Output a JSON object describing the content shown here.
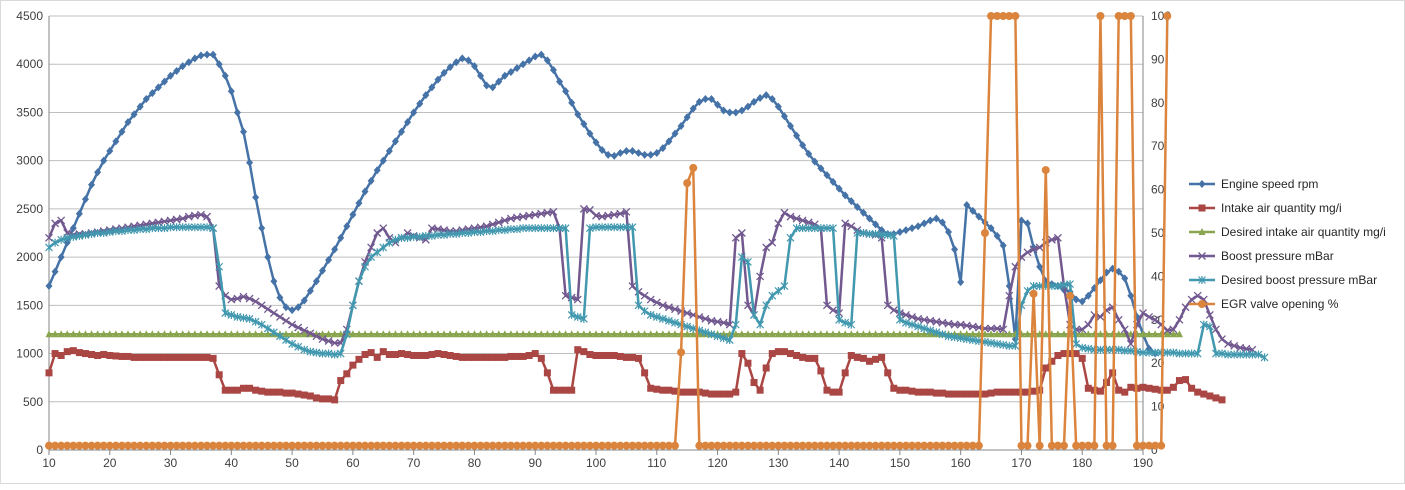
{
  "chart_data": {
    "type": "line",
    "title": "",
    "xlabel": "",
    "ylabel": "",
    "y2label": "",
    "grid": true,
    "legend_position": "right",
    "xlim": [
      10,
      190
    ],
    "x_ticks": [
      10,
      20,
      30,
      40,
      50,
      60,
      70,
      80,
      90,
      100,
      110,
      120,
      130,
      140,
      150,
      160,
      170,
      180,
      190
    ],
    "ylim": [
      0,
      4500
    ],
    "y_ticks": [
      0,
      500,
      1000,
      1500,
      2000,
      2500,
      3000,
      3500,
      4000,
      4500
    ],
    "y2lim": [
      0,
      100
    ],
    "y2_ticks": [
      0,
      10,
      20,
      30,
      40,
      50,
      60,
      70,
      80,
      90,
      100
    ],
    "x_start": 10,
    "x_step": 1,
    "series": [
      {
        "name": "Engine speed rpm",
        "axis": "left",
        "color": "#4572A7",
        "marker": "diamond",
        "values": [
          1700,
          1850,
          2000,
          2150,
          2300,
          2450,
          2600,
          2750,
          2880,
          3000,
          3100,
          3200,
          3300,
          3400,
          3480,
          3560,
          3640,
          3700,
          3760,
          3820,
          3880,
          3930,
          3980,
          4020,
          4060,
          4090,
          4100,
          4100,
          4000,
          3880,
          3720,
          3500,
          3300,
          2980,
          2620,
          2300,
          2000,
          1750,
          1580,
          1480,
          1450,
          1480,
          1550,
          1650,
          1750,
          1860,
          1970,
          2080,
          2200,
          2320,
          2440,
          2560,
          2680,
          2790,
          2900,
          3000,
          3100,
          3200,
          3300,
          3400,
          3500,
          3590,
          3680,
          3760,
          3840,
          3910,
          3970,
          4020,
          4060,
          4040,
          3980,
          3880,
          3780,
          3760,
          3820,
          3880,
          3920,
          3960,
          4000,
          4040,
          4080,
          4100,
          4040,
          3940,
          3820,
          3720,
          3600,
          3480,
          3380,
          3280,
          3190,
          3110,
          3060,
          3050,
          3080,
          3100,
          3100,
          3080,
          3060,
          3060,
          3080,
          3130,
          3200,
          3280,
          3360,
          3450,
          3540,
          3610,
          3640,
          3640,
          3580,
          3520,
          3500,
          3500,
          3520,
          3560,
          3610,
          3650,
          3680,
          3640,
          3560,
          3460,
          3360,
          3260,
          3160,
          3070,
          2990,
          2920,
          2850,
          2780,
          2710,
          2640,
          2580,
          2520,
          2460,
          2400,
          2340,
          2280,
          2240,
          2240,
          2260,
          2280,
          2300,
          2320,
          2350,
          2380,
          2400,
          2360,
          2260,
          2080,
          1740,
          2540,
          2480,
          2420,
          2360,
          2300,
          2220,
          2120,
          1700,
          1150,
          2380,
          2350,
          2100,
          1900,
          1750,
          1720,
          1700,
          1660,
          1640,
          1560,
          1540,
          1600,
          1680,
          1760,
          1840,
          1880,
          1850,
          1780,
          1600,
          1380,
          1200,
          1050,
          1000
        ],
        "_note": ""
      },
      {
        "name": "Intake air quantity mg/i",
        "axis": "left",
        "color": "#AA4643",
        "marker": "square",
        "values": [
          800,
          1000,
          980,
          1020,
          1030,
          1010,
          1000,
          990,
          980,
          990,
          980,
          975,
          970,
          970,
          960,
          960,
          960,
          960,
          960,
          960,
          960,
          960,
          960,
          960,
          960,
          960,
          960,
          950,
          780,
          620,
          620,
          620,
          640,
          640,
          620,
          610,
          600,
          600,
          600,
          590,
          590,
          580,
          570,
          560,
          540,
          530,
          530,
          520,
          720,
          790,
          880,
          940,
          990,
          1010,
          960,
          1020,
          990,
          990,
          1000,
          990,
          980,
          980,
          980,
          990,
          1000,
          990,
          980,
          970,
          960,
          960,
          960,
          960,
          960,
          960,
          960,
          960,
          970,
          970,
          970,
          980,
          1000,
          950,
          800,
          620,
          620,
          620,
          620,
          1040,
          1020,
          990,
          980,
          980,
          980,
          980,
          970,
          960,
          960,
          950,
          800,
          640,
          630,
          620,
          620,
          610,
          600,
          600,
          600,
          600,
          590,
          580,
          580,
          580,
          580,
          600,
          1000,
          900,
          700,
          620,
          850,
          1000,
          1020,
          1020,
          1000,
          980,
          960,
          950,
          950,
          820,
          620,
          600,
          600,
          800,
          980,
          960,
          950,
          920,
          940,
          960,
          800,
          640,
          620,
          620,
          610,
          600,
          600,
          600,
          590,
          590,
          580,
          580,
          580,
          580,
          580,
          580,
          580,
          590,
          600,
          600,
          600,
          600,
          600,
          600,
          610,
          620,
          850,
          920,
          980,
          1000,
          1000,
          1000,
          950,
          640,
          620,
          610,
          700,
          800,
          620,
          600,
          650,
          640,
          650,
          640,
          630,
          620,
          620,
          650,
          720,
          730,
          640,
          600,
          580,
          560,
          540,
          520
        ],
        "_note": ""
      },
      {
        "name": "Desired intake air quantity mg/i",
        "axis": "left",
        "color": "#89A54E",
        "marker": "triangle",
        "values": [
          1200,
          1200,
          1200,
          1200,
          1200,
          1200,
          1200,
          1200,
          1200,
          1200,
          1200,
          1200,
          1200,
          1200,
          1200,
          1200,
          1200,
          1200,
          1200,
          1200,
          1200,
          1200,
          1200,
          1200,
          1200,
          1200,
          1200,
          1200,
          1200,
          1200,
          1200,
          1200,
          1200,
          1200,
          1200,
          1200,
          1200,
          1200,
          1200,
          1200,
          1200,
          1200,
          1200,
          1200,
          1200,
          1200,
          1200,
          1200,
          1200,
          1200,
          1200,
          1200,
          1200,
          1200,
          1200,
          1200,
          1200,
          1200,
          1200,
          1200,
          1200,
          1200,
          1200,
          1200,
          1200,
          1200,
          1200,
          1200,
          1200,
          1200,
          1200,
          1200,
          1200,
          1200,
          1200,
          1200,
          1200,
          1200,
          1200,
          1200,
          1200,
          1200,
          1200,
          1200,
          1200,
          1200,
          1200,
          1200,
          1200,
          1200,
          1200,
          1200,
          1200,
          1200,
          1200,
          1200,
          1200,
          1200,
          1200,
          1200,
          1200,
          1200,
          1200,
          1200,
          1200,
          1200,
          1200,
          1200,
          1200,
          1200,
          1200,
          1200,
          1200,
          1200,
          1200,
          1200,
          1200,
          1200,
          1200,
          1200,
          1200,
          1200,
          1200,
          1200,
          1200,
          1200,
          1200,
          1200,
          1200,
          1200,
          1200,
          1200,
          1200,
          1200,
          1200,
          1200,
          1200,
          1200,
          1200,
          1200,
          1200,
          1200,
          1200,
          1200,
          1200,
          1200,
          1200,
          1200,
          1200,
          1200,
          1200,
          1200,
          1200,
          1200,
          1200,
          1200,
          1200,
          1200,
          1200,
          1200,
          1200,
          1200,
          1200,
          1200,
          1200,
          1200,
          1200,
          1200,
          1200,
          1200,
          1200,
          1200,
          1200,
          1200,
          1200,
          1200,
          1200,
          1200,
          1200,
          1200,
          1200,
          1200,
          1200,
          1200,
          1200,
          1200,
          1200
        ],
        "_note": ""
      },
      {
        "name": "Boost pressure mBar",
        "axis": "left",
        "color": "#71588F",
        "marker": "x",
        "values": [
          2200,
          2350,
          2380,
          2250,
          2230,
          2240,
          2240,
          2250,
          2260,
          2270,
          2280,
          2290,
          2300,
          2310,
          2320,
          2330,
          2340,
          2350,
          2360,
          2370,
          2380,
          2390,
          2400,
          2420,
          2430,
          2440,
          2420,
          2300,
          1700,
          1600,
          1560,
          1570,
          1590,
          1570,
          1540,
          1500,
          1460,
          1420,
          1380,
          1340,
          1300,
          1270,
          1240,
          1210,
          1180,
          1150,
          1130,
          1110,
          1110,
          1250,
          1500,
          1750,
          1950,
          2100,
          2250,
          2300,
          2200,
          2150,
          2200,
          2250,
          2220,
          2200,
          2180,
          2300,
          2290,
          2280,
          2270,
          2270,
          2280,
          2290,
          2300,
          2310,
          2320,
          2340,
          2360,
          2380,
          2400,
          2410,
          2420,
          2430,
          2440,
          2450,
          2460,
          2470,
          2300,
          1600,
          1580,
          1560,
          2500,
          2490,
          2430,
          2420,
          2430,
          2440,
          2450,
          2470,
          1700,
          1640,
          1600,
          1560,
          1530,
          1500,
          1480,
          1460,
          1440,
          1420,
          1400,
          1380,
          1360,
          1340,
          1330,
          1320,
          1300,
          2200,
          2250,
          1500,
          1400,
          1800,
          2100,
          2150,
          2350,
          2460,
          2420,
          2400,
          2380,
          2360,
          2340,
          2300,
          1500,
          1450,
          1420,
          2350,
          2320,
          2280,
          2250,
          2240,
          2230,
          2200,
          1500,
          1450,
          1420,
          1400,
          1380,
          1360,
          1350,
          1340,
          1330,
          1320,
          1310,
          1300,
          1300,
          1290,
          1280,
          1270,
          1260,
          1260,
          1260,
          1250,
          1600,
          1900,
          2000,
          2050,
          2080,
          2100,
          2150,
          2180,
          2200,
          1700,
          1300,
          1250,
          1250,
          1300,
          1400,
          1380,
          1450,
          1480,
          1350,
          1250,
          1100,
          1300,
          1420,
          1380,
          1350,
          1300,
          1240,
          1250,
          1350,
          1480,
          1560,
          1600,
          1560,
          1400,
          1250,
          1150,
          1100,
          1080,
          1060,
          1050,
          1040
        ],
        "_note": ""
      },
      {
        "name": "Desired boost pressure mBar",
        "axis": "left",
        "color": "#4198AF",
        "marker": "star",
        "values": [
          2100,
          2150,
          2180,
          2200,
          2210,
          2220,
          2230,
          2240,
          2250,
          2250,
          2260,
          2270,
          2270,
          2280,
          2280,
          2290,
          2290,
          2300,
          2300,
          2300,
          2310,
          2310,
          2310,
          2310,
          2310,
          2310,
          2310,
          2300,
          1900,
          1420,
          1400,
          1380,
          1370,
          1360,
          1330,
          1300,
          1260,
          1220,
          1180,
          1140,
          1100,
          1070,
          1040,
          1020,
          1010,
          1000,
          1000,
          990,
          1000,
          1200,
          1500,
          1750,
          1900,
          2000,
          2050,
          2100,
          2150,
          2180,
          2200,
          2200,
          2210,
          2210,
          2220,
          2220,
          2230,
          2230,
          2240,
          2240,
          2250,
          2250,
          2260,
          2260,
          2270,
          2270,
          2280,
          2280,
          2290,
          2290,
          2300,
          2300,
          2300,
          2300,
          2300,
          2300,
          2300,
          2300,
          1400,
          1380,
          1360,
          2300,
          2310,
          2310,
          2310,
          2310,
          2310,
          2310,
          2310,
          1500,
          1440,
          1400,
          1380,
          1360,
          1340,
          1320,
          1300,
          1280,
          1260,
          1240,
          1220,
          1200,
          1180,
          1160,
          1140,
          1300,
          2000,
          1950,
          1400,
          1300,
          1500,
          1600,
          1650,
          1700,
          2200,
          2300,
          2300,
          2300,
          2300,
          2300,
          2300,
          2300,
          1350,
          1320,
          1300,
          2250,
          2250,
          2240,
          2240,
          2230,
          2230,
          2220,
          1350,
          1320,
          1300,
          1280,
          1260,
          1240,
          1220,
          1200,
          1180,
          1170,
          1160,
          1150,
          1140,
          1130,
          1120,
          1110,
          1100,
          1090,
          1080,
          1080,
          1500,
          1650,
          1700,
          1700,
          1700,
          1700,
          1700,
          1710,
          1720,
          1100,
          1060,
          1050,
          1040,
          1040,
          1040,
          1040,
          1040,
          1030,
          1030,
          1020,
          1010,
          1010,
          1010,
          1010,
          1010,
          1010,
          1000,
          1000,
          1000,
          1000,
          1300,
          1280,
          1000,
          1000,
          990,
          990,
          990,
          990,
          990,
          990,
          960
        ],
        "_note": ""
      },
      {
        "name": "EGR valve opening %",
        "axis": "right",
        "color": "#DB843D",
        "marker": "circle",
        "values": [
          1,
          1,
          1,
          1,
          1,
          1,
          1,
          1,
          1,
          1,
          1,
          1,
          1,
          1,
          1,
          1,
          1,
          1,
          1,
          1,
          1,
          1,
          1,
          1,
          1,
          1,
          1,
          1,
          1,
          1,
          1,
          1,
          1,
          1,
          1,
          1,
          1,
          1,
          1,
          1,
          1,
          1,
          1,
          1,
          1,
          1,
          1,
          1,
          1,
          1,
          1,
          1,
          1,
          1,
          1,
          1,
          1,
          1,
          1,
          1,
          1,
          1,
          1,
          1,
          1,
          1,
          1,
          1,
          1,
          1,
          1,
          1,
          1,
          1,
          1,
          1,
          1,
          1,
          1,
          1,
          1,
          1,
          1,
          1,
          1,
          1,
          1,
          1,
          1,
          1,
          1,
          1,
          1,
          1,
          1,
          1,
          1,
          1,
          1,
          1,
          1,
          1,
          1,
          1,
          22.5,
          61.5,
          65,
          1,
          1,
          1,
          1,
          1,
          1,
          1,
          1,
          1,
          1,
          1,
          1,
          1,
          1,
          1,
          1,
          1,
          1,
          1,
          1,
          1,
          1,
          1,
          1,
          1,
          1,
          1,
          1,
          1,
          1,
          1,
          1,
          1,
          1,
          1,
          1,
          1,
          1,
          1,
          1,
          1,
          1,
          1,
          1,
          1,
          1,
          1,
          50,
          100,
          100,
          100,
          100,
          100,
          1,
          1,
          36,
          1,
          64.5,
          1,
          1,
          1,
          35.5,
          1,
          1,
          1,
          1,
          100,
          1,
          1,
          100,
          100,
          100,
          1,
          1,
          1,
          1,
          1,
          100
        ],
        "_note": ""
      }
    ]
  }
}
